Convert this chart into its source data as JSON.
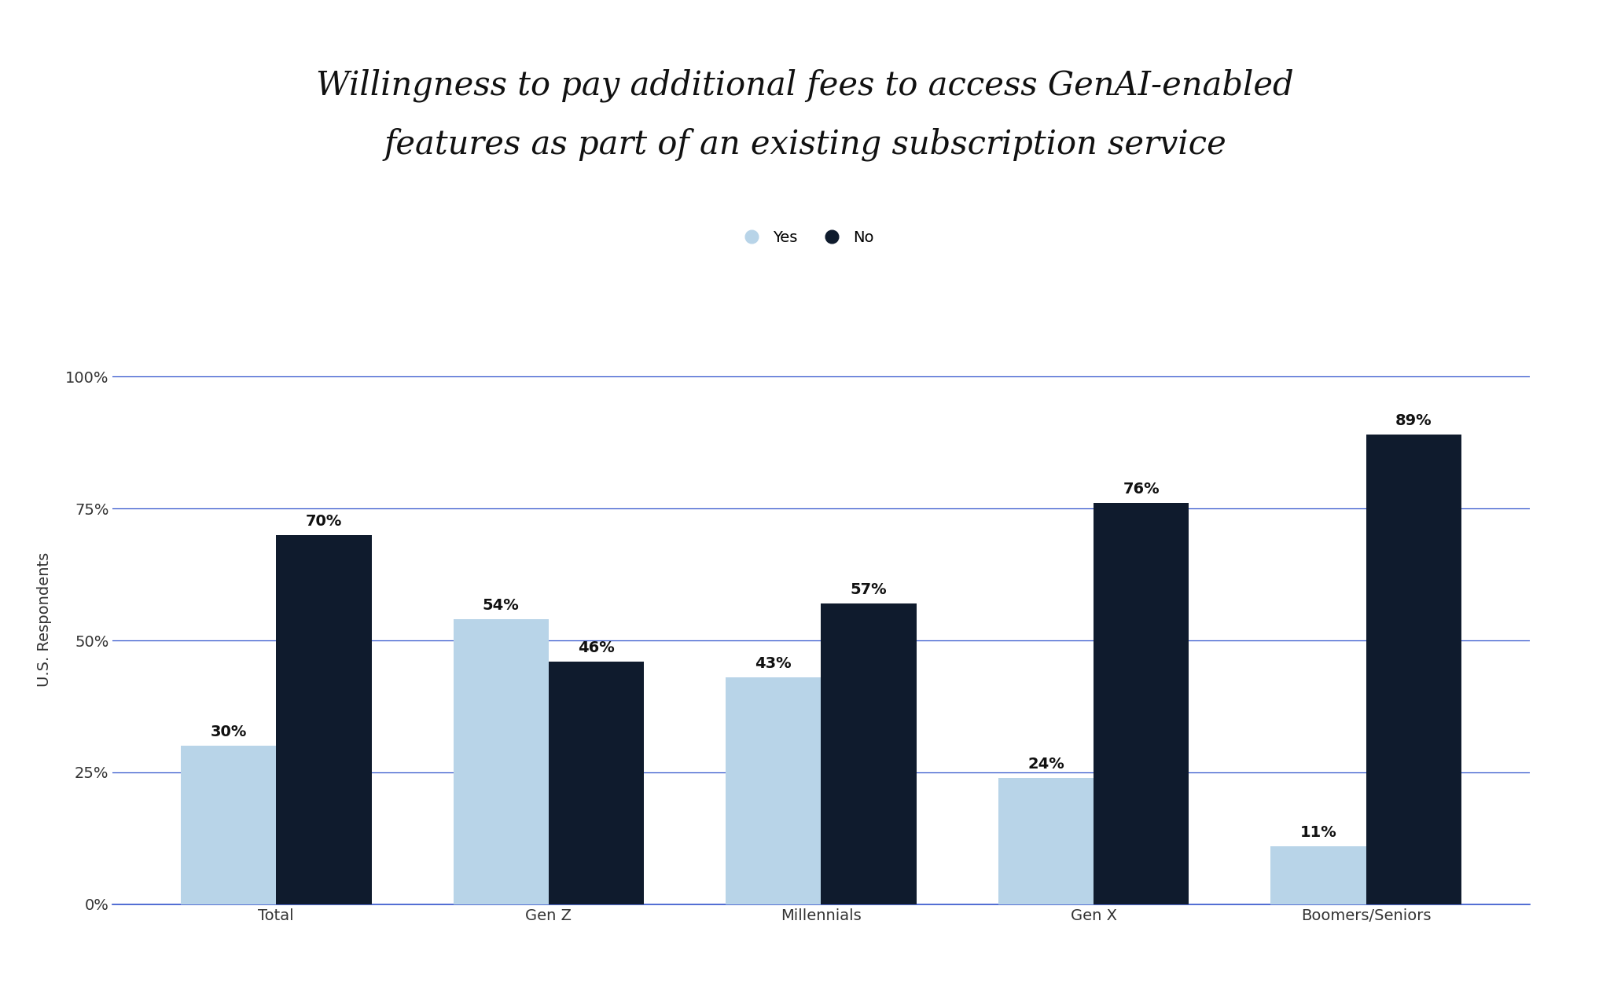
{
  "title_line1": "Willingness to pay additional fees to access GenAI-enabled",
  "title_line2": "features as part of an existing subscription service",
  "categories": [
    "Total",
    "Gen Z",
    "Millennials",
    "Gen X",
    "Boomers/Seniors"
  ],
  "yes_values": [
    30,
    54,
    43,
    24,
    11
  ],
  "no_values": [
    70,
    46,
    57,
    76,
    89
  ],
  "yes_color": "#b8d4e8",
  "no_color": "#0f1b2d",
  "ylabel": "U.S. Respondents",
  "yticks": [
    0,
    25,
    50,
    75,
    100
  ],
  "ytick_labels": [
    "0%",
    "25%",
    "50%",
    "75%",
    "100%"
  ],
  "legend_yes": "Yes",
  "legend_no": "No",
  "background_color": "#ffffff",
  "grid_color": "#3355cc",
  "bar_width": 0.35,
  "title_fontsize": 30,
  "tick_fontsize": 14,
  "ylabel_fontsize": 14,
  "legend_fontsize": 14,
  "value_label_fontsize": 14
}
